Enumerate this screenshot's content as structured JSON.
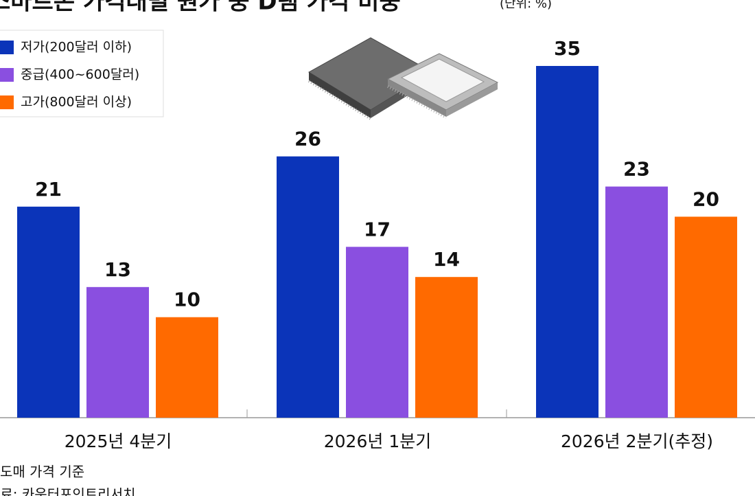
{
  "chart_data": {
    "type": "bar",
    "title": "스마트폰 가격대별 원가 중 D램 가격 비중",
    "unit": "(단위: %)",
    "categories": [
      "2025년 4분기",
      "2026년 1분기",
      "2026년 2분기(추정)"
    ],
    "series": [
      {
        "name": "저가(200달러 이하)",
        "color": "#0b34b9",
        "values": [
          21,
          26,
          35
        ]
      },
      {
        "name": "중급(400~600달러)",
        "color": "#8a4fe0",
        "values": [
          13,
          17,
          23
        ]
      },
      {
        "name": "고가(800달러 이상)",
        "color": "#ff6a00",
        "values": [
          10,
          14,
          20
        ]
      }
    ],
    "ylim": [
      0,
      35
    ],
    "legend": "top-left",
    "notes": [
      "도매 가격 기준",
      "자료: 카운터포인트리서치"
    ]
  }
}
